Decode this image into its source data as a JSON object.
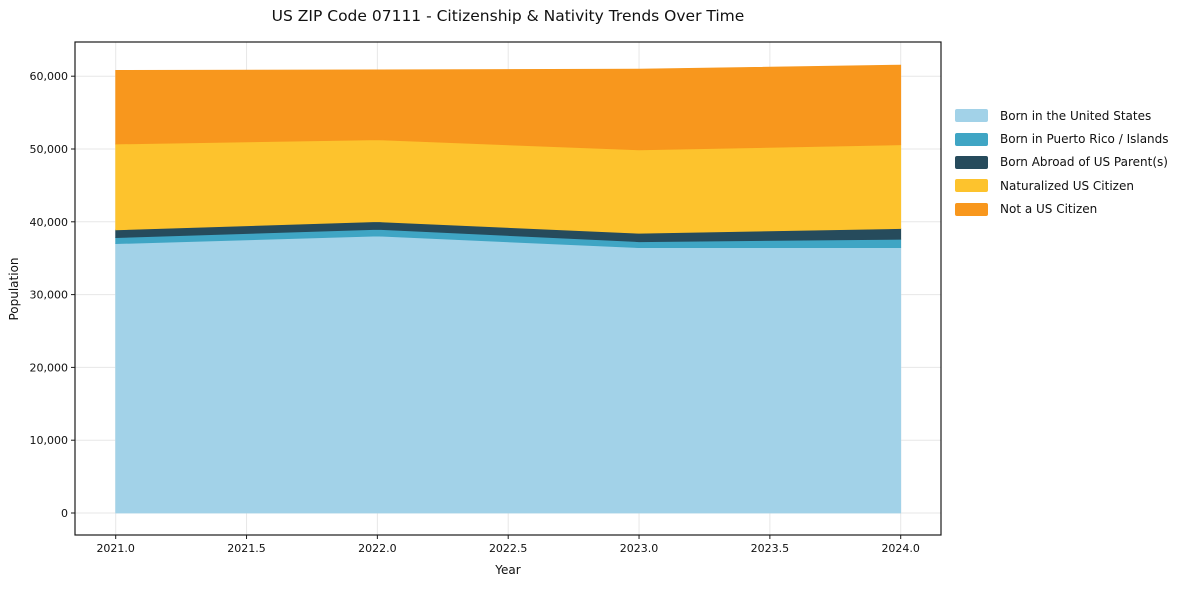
{
  "title": "US ZIP Code 07111 - Citizenship & Nativity Trends Over Time",
  "chart_data": {
    "type": "area",
    "stacked": true,
    "title": "US ZIP Code 07111 - Citizenship & Nativity Trends Over Time",
    "xlabel": "Year",
    "ylabel": "Population",
    "x": [
      2021,
      2022,
      2023,
      2024
    ],
    "x_ticks": [
      {
        "v": 2021.0,
        "label": "2021.0"
      },
      {
        "v": 2021.5,
        "label": "2021.5"
      },
      {
        "v": 2022.0,
        "label": "2022.0"
      },
      {
        "v": 2022.5,
        "label": "2022.5"
      },
      {
        "v": 2023.0,
        "label": "2023.0"
      },
      {
        "v": 2023.5,
        "label": "2023.5"
      },
      {
        "v": 2024.0,
        "label": "2024.0"
      }
    ],
    "y_ticks": [
      {
        "v": 0,
        "label": "0"
      },
      {
        "v": 10000,
        "label": "10,000"
      },
      {
        "v": 20000,
        "label": "20,000"
      },
      {
        "v": 30000,
        "label": "30,000"
      },
      {
        "v": 40000,
        "label": "40,000"
      },
      {
        "v": 50000,
        "label": "50,000"
      },
      {
        "v": 60000,
        "label": "60,000"
      }
    ],
    "xlim": [
      2020.85,
      2024.15
    ],
    "ylim": [
      -3080,
      64700
    ],
    "grid": true,
    "grid_color": "#e7e7e7",
    "spine_color": "#1a1a1a",
    "legend_position": "right-outside",
    "series": [
      {
        "name": "Born in the United States",
        "color": "#a2d2e8",
        "values": [
          37000,
          38050,
          36450,
          36450
        ]
      },
      {
        "name": "Born in Puerto Rico / Islands",
        "color": "#3fa5c4",
        "values": [
          830,
          920,
          820,
          1160
        ]
      },
      {
        "name": "Born Abroad of US Parent(s)",
        "color": "#264b5c",
        "values": [
          1060,
          1050,
          1160,
          1470
        ]
      },
      {
        "name": "Naturalized US Citizen",
        "color": "#fdc32d",
        "values": [
          11800,
          11250,
          11450,
          11500
        ]
      },
      {
        "name": "Not a US Citizen",
        "color": "#f8971d",
        "values": [
          10100,
          9600,
          11090,
          10940
        ]
      }
    ],
    "totals": [
      60790,
      60870,
      60970,
      61520
    ]
  }
}
